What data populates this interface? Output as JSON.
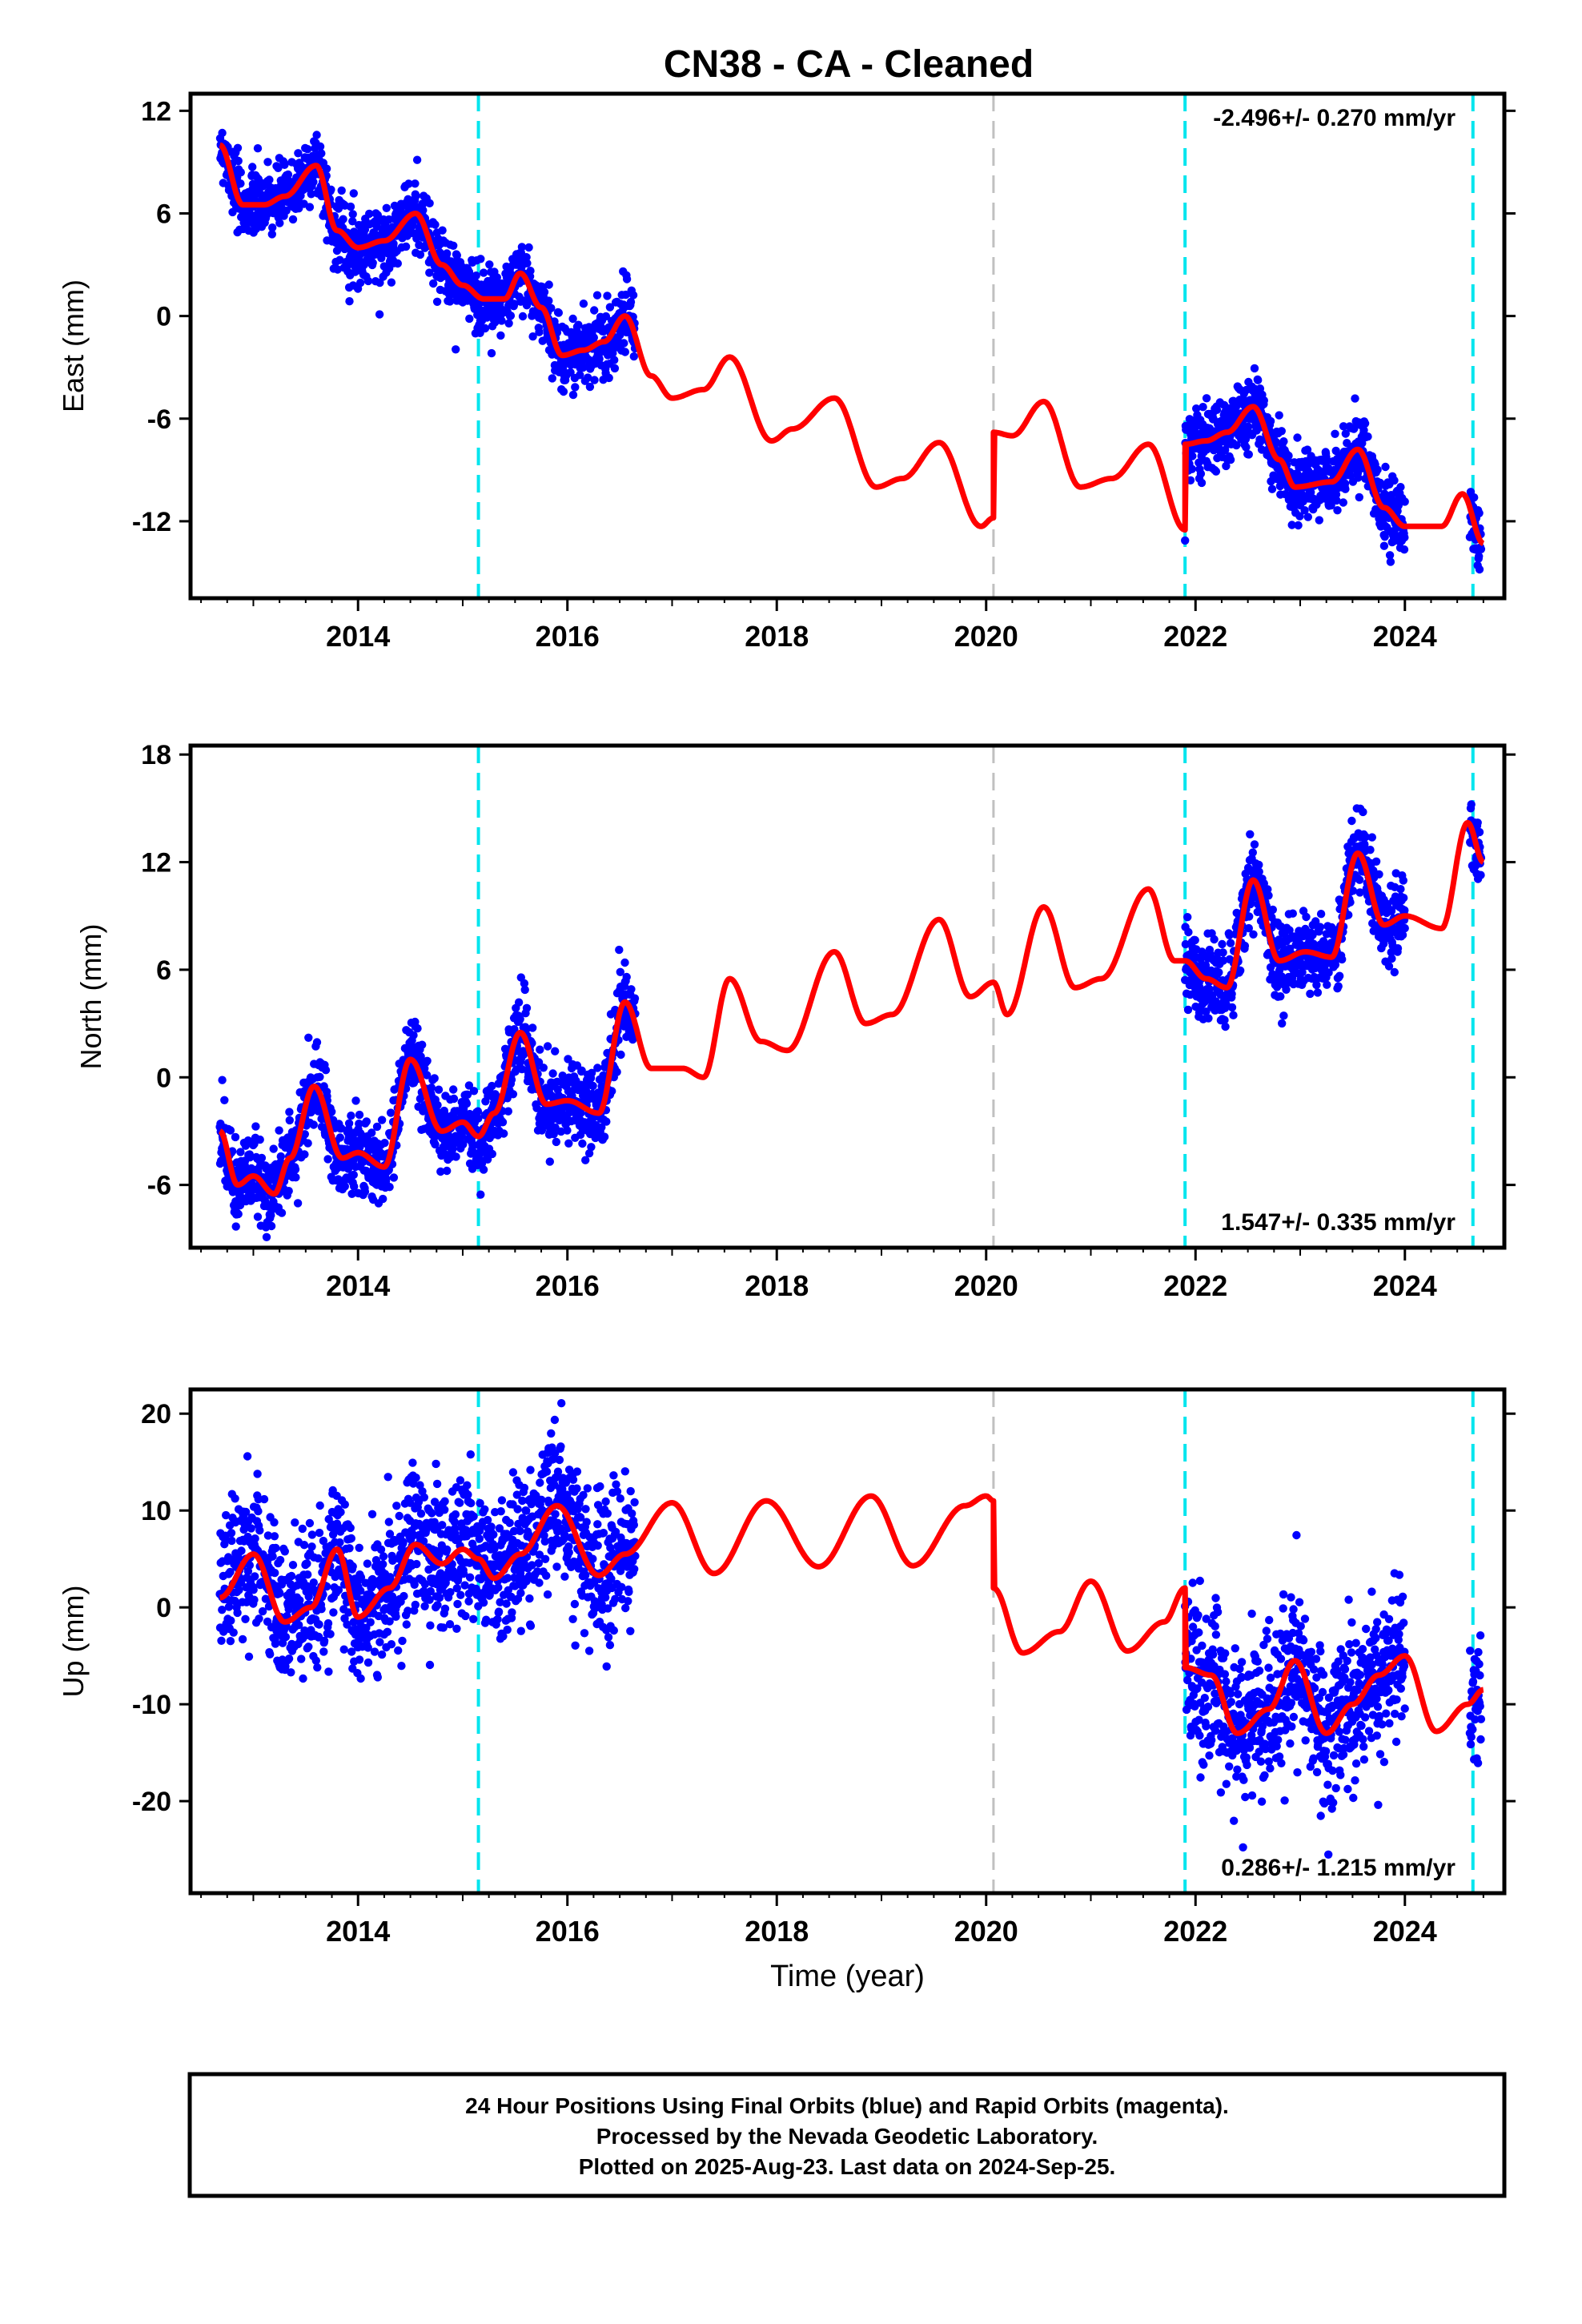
{
  "title": "CN38  - CA - Cleaned",
  "colors": {
    "final_orbits": "#0000ff",
    "model": "#ff0000",
    "offset_equipment": "#00e5ee",
    "offset_other": "#c0c0c0",
    "frame": "#000000"
  },
  "chart_data": [
    {
      "type": "scatter",
      "panel": "east",
      "title": "",
      "ylabel": "East (mm)",
      "xlabel": "",
      "xlim": [
        2012.4,
        2024.95
      ],
      "ylim": [
        -16.5,
        13
      ],
      "yticks": [
        12,
        6,
        0,
        -6,
        -12
      ],
      "ytick_labels": [
        "12",
        "6",
        "0",
        "-6",
        "-12"
      ],
      "xticks": [
        2014,
        2016,
        2018,
        2020,
        2022,
        2024
      ],
      "xtick_labels": [
        "2014",
        "2016",
        "2018",
        "2020",
        "2022",
        "2024"
      ],
      "rate_label": "-2.496+/- 0.270 mm/yr",
      "rate_position": "top-right",
      "data_segments": [
        [
          2012.68,
          2016.65
        ],
        [
          2021.9,
          2024.0
        ],
        [
          2024.62,
          2024.73
        ]
      ],
      "offsets_equipment": [
        2015.15,
        2021.9,
        2024.65
      ],
      "offsets_other": [
        2020.07
      ],
      "model": {
        "knots_x": [
          2012.68,
          2012.9,
          2013.1,
          2013.3,
          2013.6,
          2013.8,
          2014.0,
          2014.25,
          2014.55,
          2014.8,
          2015.0,
          2015.2,
          2015.4,
          2015.55,
          2015.75,
          2015.95,
          2016.15,
          2016.35,
          2016.55,
          2016.8,
          2017.0,
          2017.3,
          2017.55,
          2017.95,
          2018.15,
          2018.55,
          2018.95,
          2019.2,
          2019.55,
          2019.95,
          2020.07,
          2020.07,
          2020.25,
          2020.55,
          2020.9,
          2021.2,
          2021.55,
          2021.9,
          2021.9,
          2022.1,
          2022.3,
          2022.55,
          2022.8,
          2022.95,
          2023.3,
          2023.55,
          2023.8,
          2024.0,
          2024.35,
          2024.55,
          2024.75
        ],
        "knots_y": [
          10,
          6.5,
          6.5,
          7,
          8.8,
          5,
          4,
          4.4,
          6,
          3,
          1.8,
          1,
          1,
          2.5,
          0.5,
          -2.3,
          -2,
          -1.5,
          0,
          -3.5,
          -4.8,
          -4.3,
          -2.4,
          -7.3,
          -6.6,
          -4.8,
          -10,
          -9.5,
          -7.4,
          -12.3,
          -11.8,
          -6.8,
          -7,
          -5,
          -10,
          -9.5,
          -7.5,
          -12.5,
          -7.5,
          -7.3,
          -6.8,
          -5.3,
          -8.4,
          -10,
          -9.7,
          -7.8,
          -11.2,
          -12.3,
          -12.3,
          -10.4,
          -13.3
        ]
      }
    },
    {
      "type": "scatter",
      "panel": "north",
      "title": "",
      "ylabel": "North (mm)",
      "xlabel": "",
      "xlim": [
        2012.4,
        2024.95
      ],
      "ylim": [
        -9.5,
        18.5
      ],
      "yticks": [
        18,
        12,
        6,
        0,
        -6
      ],
      "ytick_labels": [
        "18",
        "12",
        "6",
        "0",
        "-6"
      ],
      "xticks": [
        2014,
        2016,
        2018,
        2020,
        2022,
        2024
      ],
      "xtick_labels": [
        "2014",
        "2016",
        "2018",
        "2020",
        "2022",
        "2024"
      ],
      "rate_label": "1.547+/- 0.335 mm/yr",
      "rate_position": "bottom-right",
      "data_segments": [
        [
          2012.68,
          2016.65
        ],
        [
          2021.9,
          2024.0
        ],
        [
          2024.62,
          2024.73
        ]
      ],
      "offsets_equipment": [
        2015.15,
        2021.9,
        2024.65
      ],
      "offsets_other": [
        2020.07
      ],
      "model": {
        "knots_x": [
          2012.68,
          2012.85,
          2013.0,
          2013.2,
          2013.35,
          2013.58,
          2013.85,
          2014.0,
          2014.25,
          2014.5,
          2014.8,
          2015.0,
          2015.15,
          2015.3,
          2015.55,
          2015.8,
          2016.0,
          2016.3,
          2016.55,
          2016.8,
          2017.1,
          2017.3,
          2017.55,
          2017.85,
          2018.1,
          2018.55,
          2018.85,
          2019.1,
          2019.55,
          2019.85,
          2020.07,
          2020.2,
          2020.55,
          2020.85,
          2021.1,
          2021.55,
          2021.8,
          2021.9,
          2022.1,
          2022.3,
          2022.55,
          2022.8,
          2023.05,
          2023.3,
          2023.55,
          2023.8,
          2024.0,
          2024.35,
          2024.6,
          2024.75
        ],
        "knots_y": [
          -3,
          -6,
          -5.5,
          -6.5,
          -4.5,
          -0.5,
          -4.5,
          -4.2,
          -5,
          1,
          -3,
          -2.5,
          -3.3,
          -2,
          2.5,
          -1.5,
          -1.3,
          -2,
          4.2,
          0.5,
          0.5,
          0,
          5.5,
          2,
          1.5,
          7,
          3,
          3.5,
          8.8,
          4.5,
          5.3,
          3.5,
          9.5,
          5,
          5.5,
          10.5,
          6.5,
          6.5,
          5.5,
          5,
          11,
          6.5,
          7,
          6.7,
          12.5,
          8.5,
          9,
          8.3,
          14.2,
          12
        ]
      }
    },
    {
      "type": "scatter",
      "panel": "up",
      "title": "",
      "ylabel": "Up (mm)",
      "xlabel": "Time (year)",
      "xlim": [
        2012.4,
        2024.95
      ],
      "ylim": [
        -29.5,
        22.5
      ],
      "yticks": [
        20,
        10,
        0,
        -10,
        -20
      ],
      "ytick_labels": [
        "20",
        "10",
        "0",
        "-10",
        "-20"
      ],
      "xticks": [
        2014,
        2016,
        2018,
        2020,
        2022,
        2024
      ],
      "xtick_labels": [
        "2014",
        "2016",
        "2018",
        "2020",
        "2022",
        "2024"
      ],
      "rate_label": "0.286+/- 1.215 mm/yr",
      "rate_position": "bottom-right",
      "data_segments": [
        [
          2012.68,
          2016.65
        ],
        [
          2021.9,
          2024.0
        ],
        [
          2024.62,
          2024.73
        ]
      ],
      "offsets_equipment": [
        2015.15,
        2021.9,
        2024.65
      ],
      "offsets_other": [
        2020.07
      ],
      "model": {
        "knots_x": [
          2012.68,
          2013.0,
          2013.3,
          2013.55,
          2013.8,
          2014.0,
          2014.3,
          2014.55,
          2014.8,
          2015.0,
          2015.15,
          2015.3,
          2015.55,
          2015.9,
          2016.3,
          2016.55,
          2017.0,
          2017.4,
          2017.9,
          2018.4,
          2018.9,
          2019.3,
          2019.8,
          2020.0,
          2020.07,
          2020.07,
          2020.35,
          2020.7,
          2021.0,
          2021.35,
          2021.7,
          2021.9,
          2021.9,
          2022.15,
          2022.4,
          2022.7,
          2022.95,
          2023.25,
          2023.5,
          2023.75,
          2024.0,
          2024.3,
          2024.6,
          2024.75
        ],
        "knots_y": [
          1,
          5.5,
          -1.5,
          0,
          6,
          -1,
          2,
          6.5,
          4.5,
          6,
          5,
          3,
          5.5,
          10.5,
          3.3,
          5.5,
          10.8,
          3.5,
          11,
          4.2,
          11.5,
          4.3,
          10.5,
          11.5,
          11,
          2,
          -4.7,
          -2.5,
          2.7,
          -4.5,
          -1.5,
          2,
          -6.2,
          -7,
          -13,
          -10.5,
          -5.5,
          -13,
          -10,
          -7,
          -5,
          -12.8,
          -10,
          -8.5
        ]
      }
    }
  ],
  "footer": {
    "line1": "24 Hour Positions Using Final Orbits (blue) and Rapid Orbits (magenta).",
    "line2": "Processed by the Nevada Geodetic Laboratory.",
    "line3": "Plotted on 2025-Aug-23. Last data on 2024-Sep-25."
  }
}
